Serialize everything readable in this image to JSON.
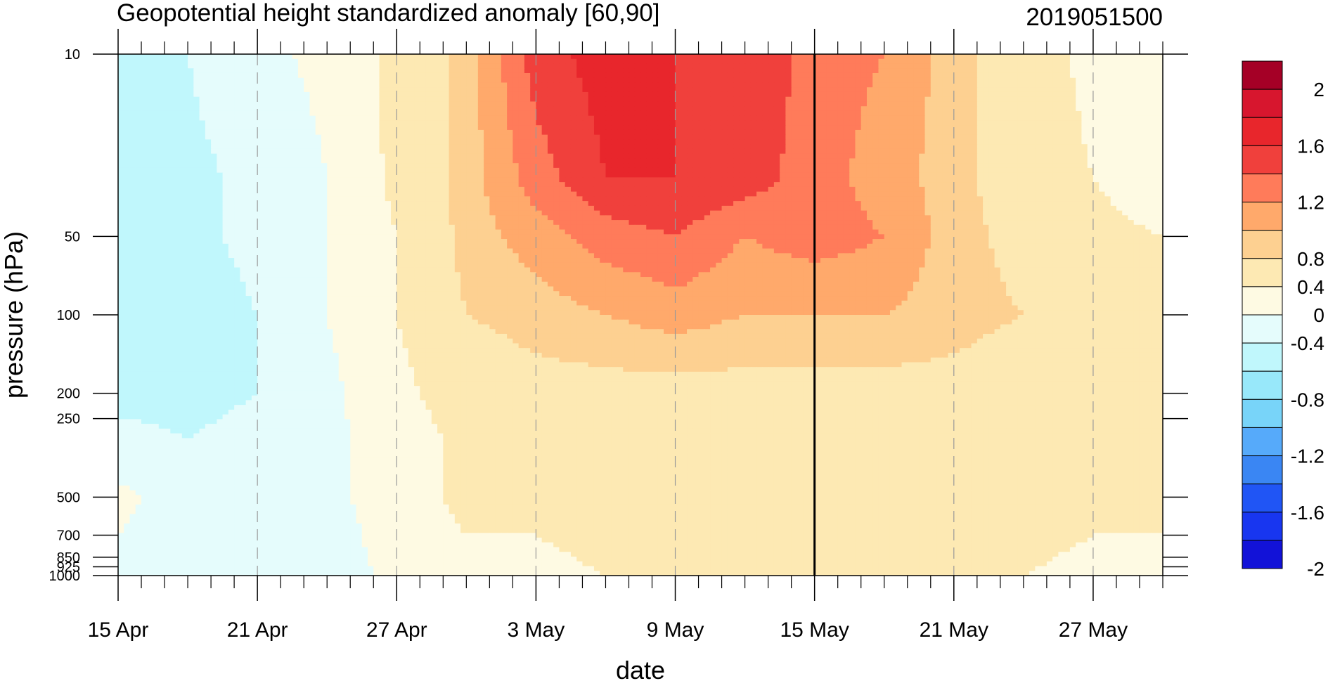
{
  "chart_data": {
    "type": "heatmap",
    "title": "Geopotential height standardized anomaly [60,90]",
    "date_stamp": "2019051500",
    "xlabel": "date",
    "ylabel": "pressure (hPa)",
    "x_ticks": [
      "15 Apr",
      "21 Apr",
      "27 Apr",
      "3 May",
      "9 May",
      "15 May",
      "21 May",
      "27 May"
    ],
    "x_range_days": [
      0,
      45
    ],
    "marked_date": "15 May",
    "y_scale": "log",
    "y_range": [
      1000,
      10
    ],
    "y_ticks": [
      10,
      50,
      100,
      200,
      250,
      500,
      700,
      850,
      925,
      1000
    ],
    "y_tick_labels": [
      "10",
      "50",
      "100",
      "200",
      "250",
      "500",
      "700",
      "850",
      "925",
      "1000"
    ],
    "colorbar": {
      "labels": [
        "2",
        "1.6",
        "1.2",
        "0.8",
        "0.4",
        "0",
        "-0.4",
        "-0.8",
        "-1.2",
        "-1.6",
        "-2"
      ],
      "colors": [
        "#a50026",
        "#d7162e",
        "#e8262c",
        "#f0403c",
        "#ff7b5a",
        "#ffa96b",
        "#fdd091",
        "#fde9b3",
        "#fefae3",
        "#e5fcfc",
        "#c0f7fc",
        "#98e8fa",
        "#78d4f9",
        "#56aafa",
        "#3a86f3",
        "#2055f5",
        "#1836f0",
        "#1212d8"
      ],
      "level_bounds": [
        2.2,
        2.0,
        1.8,
        1.6,
        1.4,
        1.2,
        1.0,
        0.8,
        0.4,
        0.0,
        -0.4,
        -0.6,
        -0.8,
        -1.0,
        -1.2,
        -1.6,
        -1.8,
        -2.0,
        -2.2
      ]
    },
    "grid": "dashed vertical lines at date ticks",
    "anomaly_grid_x_days": [
      0,
      3,
      6,
      9,
      12,
      15,
      18,
      21,
      24,
      27,
      30,
      33,
      36,
      39,
      42,
      45
    ],
    "anomaly_grid_y_hpa": [
      10,
      30,
      50,
      100,
      200,
      300,
      500,
      700,
      1000
    ],
    "anomaly_values": [
      [
        -0.6,
        -0.4,
        -0.1,
        0.1,
        0.5,
        0.9,
        1.5,
        1.7,
        1.6,
        1.6,
        1.3,
        1.2,
        0.9,
        0.6,
        0.3,
        0.0
      ],
      [
        -0.6,
        -0.5,
        -0.3,
        0.0,
        0.5,
        0.9,
        1.3,
        1.6,
        1.6,
        1.5,
        1.3,
        1.1,
        0.9,
        0.6,
        0.4,
        0.2
      ],
      [
        -0.6,
        -0.5,
        -0.3,
        0.0,
        0.4,
        0.9,
        1.1,
        1.3,
        1.4,
        1.2,
        1.3,
        1.2,
        0.9,
        0.7,
        0.5,
        0.4
      ],
      [
        -0.6,
        -0.6,
        -0.4,
        0.0,
        0.4,
        0.8,
        0.9,
        1.0,
        1.1,
        1.0,
        1.0,
        1.0,
        0.9,
        0.8,
        0.6,
        0.6
      ],
      [
        -0.5,
        -0.5,
        -0.4,
        -0.1,
        0.3,
        0.6,
        0.7,
        0.7,
        0.7,
        0.7,
        0.7,
        0.7,
        0.7,
        0.6,
        0.6,
        0.6
      ],
      [
        -0.3,
        -0.4,
        -0.3,
        -0.1,
        0.2,
        0.5,
        0.5,
        0.6,
        0.6,
        0.6,
        0.6,
        0.6,
        0.6,
        0.5,
        0.5,
        0.5
      ],
      [
        0.1,
        -0.2,
        -0.4,
        -0.1,
        0.2,
        0.5,
        0.5,
        0.6,
        0.6,
        0.6,
        0.6,
        0.6,
        0.6,
        0.5,
        0.5,
        0.5
      ],
      [
        0.0,
        -0.2,
        -0.4,
        -0.2,
        0.2,
        0.4,
        0.4,
        0.5,
        0.6,
        0.7,
        0.6,
        0.6,
        0.6,
        0.5,
        0.4,
        0.4
      ],
      [
        -0.1,
        -0.2,
        -0.4,
        -0.2,
        0.1,
        0.3,
        0.3,
        0.4,
        0.4,
        0.4,
        0.4,
        0.4,
        0.4,
        0.4,
        0.3,
        0.3
      ]
    ]
  }
}
